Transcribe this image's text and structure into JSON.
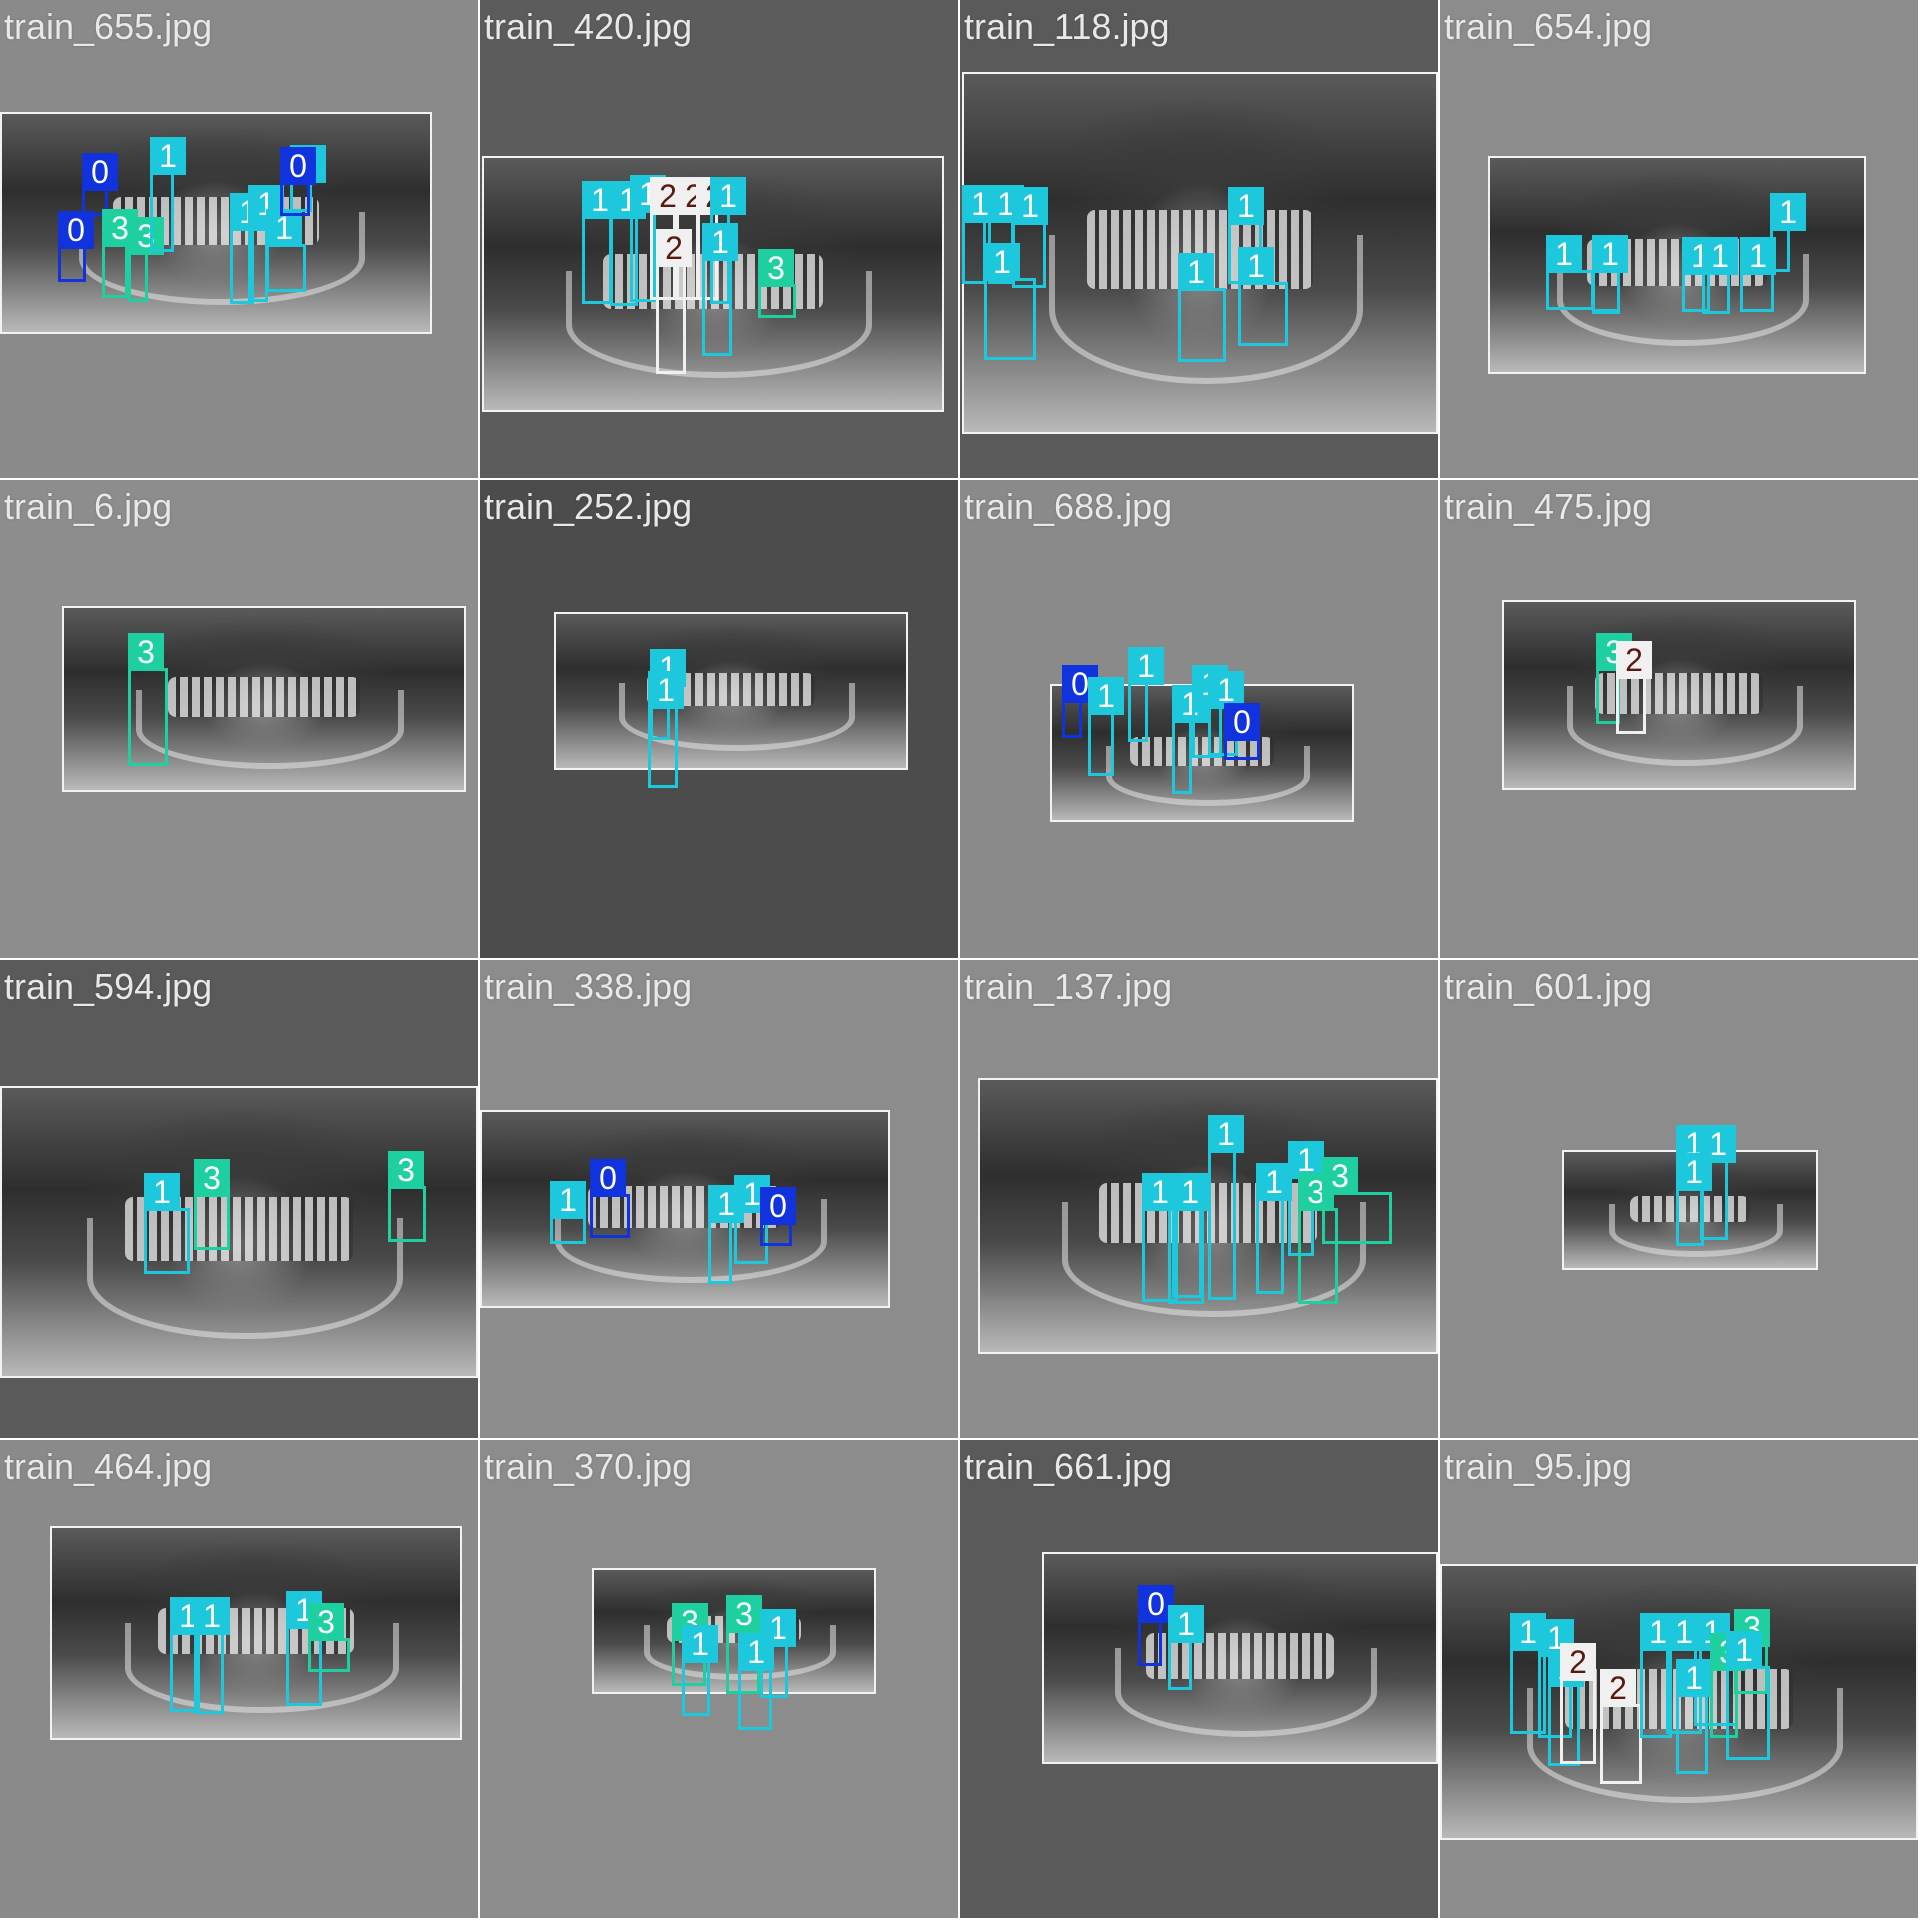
{
  "tile_labels": [
    "train_655.jpg",
    "train_420.jpg",
    "train_118.jpg",
    "train_654.jpg",
    "train_6.jpg",
    "train_252.jpg",
    "train_688.jpg",
    "train_475.jpg",
    "train_594.jpg",
    "train_338.jpg",
    "train_137.jpg",
    "train_601.jpg",
    "train_464.jpg",
    "train_370.jpg",
    "train_661.jpg",
    "train_95.jpg"
  ],
  "class_colors": {
    "0": "#1133dd",
    "1": "#1ec8dc",
    "2": "#f0f0f0",
    "3": "#1ed0a0"
  },
  "class_text_colors": {
    "0": "#ffffff",
    "1": "#ffffff",
    "2": "#5a1a10",
    "3": "#ffffff"
  },
  "tile_backgrounds": [
    "#8a8a8a",
    "#5c5c5c",
    "#5a5a5a",
    "#8c8c8c",
    "#8d8d8d",
    "#4c4c4c",
    "#8a8a8a",
    "#8c8c8c",
    "#5a5a5a",
    "#8c8c8c",
    "#8c8c8c",
    "#8c8c8c",
    "#8a8a8a",
    "#8c8c8c",
    "#5a5a5a",
    "#8c8c8c"
  ],
  "detections": [
    [
      "0",
      "0",
      "3",
      "3",
      "1",
      "1",
      "1",
      "1",
      "1",
      "0"
    ],
    [
      "1",
      "1",
      "1",
      "2",
      "2",
      "2",
      "1",
      "1",
      "3",
      "2"
    ],
    [
      "1",
      "1",
      "1",
      "1",
      "1",
      "1",
      "1"
    ],
    [
      "1",
      "1",
      "1",
      "1",
      "1",
      "1",
      "1"
    ],
    [
      "3"
    ],
    [
      "1",
      "1"
    ],
    [
      "0",
      "1",
      "1",
      "1",
      "1",
      "1",
      "0"
    ],
    [
      "3",
      "2"
    ],
    [
      "3",
      "3",
      "1"
    ],
    [
      "1",
      "0",
      "1",
      "1",
      "0"
    ],
    [
      "1",
      "1",
      "1",
      "1",
      "1",
      "1",
      "3",
      "3"
    ],
    [
      "1",
      "1",
      "1"
    ],
    [
      "1",
      "1",
      "1",
      "3"
    ],
    [
      "3",
      "1",
      "3",
      "1",
      "1"
    ],
    [
      "0",
      "1"
    ],
    [
      "1",
      "1",
      "1",
      "2",
      "2",
      "1",
      "1",
      "1",
      "3",
      "1",
      "3",
      "1"
    ]
  ]
}
